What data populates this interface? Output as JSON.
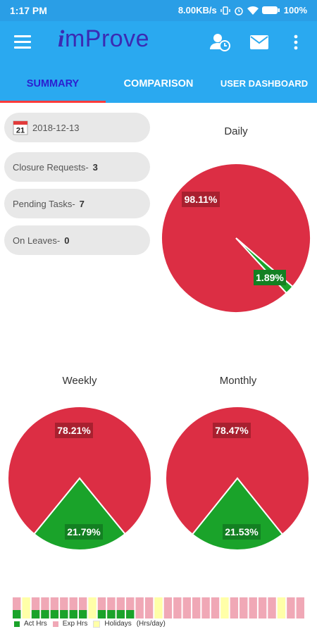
{
  "status_bar": {
    "time": "1:17 PM",
    "network_speed": "8.00KB/s",
    "battery": "100%"
  },
  "app_bar": {
    "logo_i": "i",
    "logo_rest": "mProve",
    "icons": [
      "menu-icon",
      "user-clock-icon",
      "mail-icon",
      "more-vert-icon"
    ]
  },
  "tabs": [
    {
      "label": "SUMMARY",
      "active": true
    },
    {
      "label": "COMPARISON",
      "active": false
    },
    {
      "label": "USER DASHBOARD",
      "active": false
    }
  ],
  "calendar": {
    "day": "21",
    "date": "2018-12-13"
  },
  "summary": [
    {
      "label": "Closure Requests-",
      "value": "3"
    },
    {
      "label": "Pending Tasks-",
      "value": "7"
    },
    {
      "label": "On Leaves-",
      "value": "0"
    }
  ],
  "colors": {
    "red": "#dc2e44",
    "green": "#1aa32a",
    "pink": "#f0a8b6",
    "yellow": "#ffffa8",
    "appbar": "#2aa9f0",
    "statusbar": "#2a9ee6"
  },
  "chart_data": [
    {
      "type": "pie",
      "title": "Daily",
      "slices": [
        {
          "label": "98.11%",
          "value": 98.11,
          "color": "#dc2e44"
        },
        {
          "label": "1.89%",
          "value": 1.89,
          "color": "#1aa32a"
        }
      ]
    },
    {
      "type": "pie",
      "title": "Weekly",
      "slices": [
        {
          "label": "78.21%",
          "value": 78.21,
          "color": "#dc2e44"
        },
        {
          "label": "21.79%",
          "value": 21.79,
          "color": "#1aa32a"
        }
      ]
    },
    {
      "type": "pie",
      "title": "Monthly",
      "slices": [
        {
          "label": "78.47%",
          "value": 78.47,
          "color": "#dc2e44"
        },
        {
          "label": "21.53%",
          "value": 21.53,
          "color": "#1aa32a"
        }
      ]
    },
    {
      "type": "bar",
      "legend": [
        {
          "label": "Act Hrs",
          "color": "#1aa32a"
        },
        {
          "label": "Exp Hrs",
          "color": "#f0a8b6"
        },
        {
          "label": "Holidays",
          "color": "#ffffa8"
        }
      ],
      "unit_label": "(Hrs/day)",
      "days": [
        {
          "kind": "work",
          "act": 0.4
        },
        {
          "kind": "holiday"
        },
        {
          "kind": "work",
          "act": 0.4
        },
        {
          "kind": "work",
          "act": 0.4
        },
        {
          "kind": "work",
          "act": 0.4
        },
        {
          "kind": "work",
          "act": 0.4
        },
        {
          "kind": "work",
          "act": 0.4
        },
        {
          "kind": "work",
          "act": 0.4
        },
        {
          "kind": "holiday"
        },
        {
          "kind": "work",
          "act": 0.4
        },
        {
          "kind": "work",
          "act": 0.4
        },
        {
          "kind": "work",
          "act": 0.4
        },
        {
          "kind": "work",
          "act": 0.4
        },
        {
          "kind": "work",
          "act": 0
        },
        {
          "kind": "work",
          "act": 0
        },
        {
          "kind": "holiday"
        },
        {
          "kind": "work",
          "act": 0
        },
        {
          "kind": "work",
          "act": 0
        },
        {
          "kind": "work",
          "act": 0
        },
        {
          "kind": "work",
          "act": 0
        },
        {
          "kind": "work",
          "act": 0
        },
        {
          "kind": "work",
          "act": 0
        },
        {
          "kind": "holiday"
        },
        {
          "kind": "work",
          "act": 0
        },
        {
          "kind": "work",
          "act": 0
        },
        {
          "kind": "work",
          "act": 0
        },
        {
          "kind": "work",
          "act": 0
        },
        {
          "kind": "work",
          "act": 0
        },
        {
          "kind": "holiday"
        },
        {
          "kind": "work",
          "act": 0
        },
        {
          "kind": "work",
          "act": 0
        }
      ]
    }
  ]
}
